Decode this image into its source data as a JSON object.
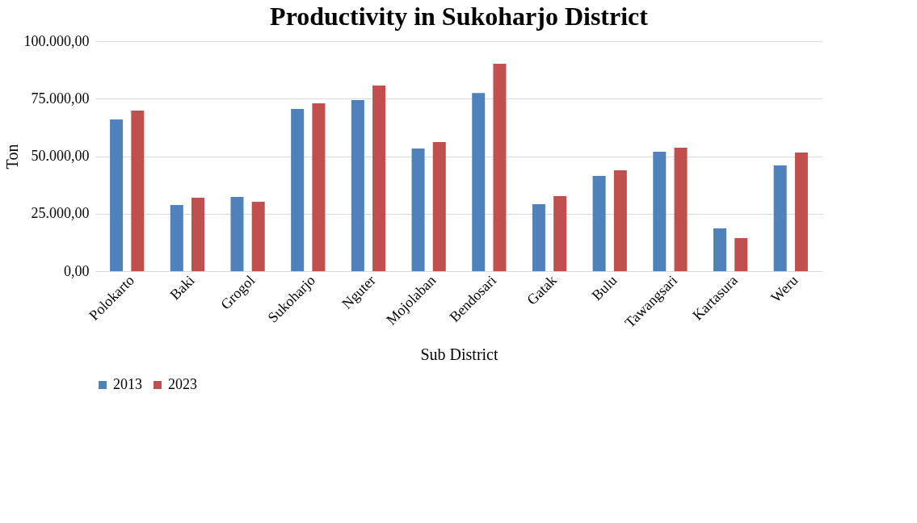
{
  "chart_data": {
    "type": "bar",
    "title": "Productivity in Sukoharjo District",
    "xlabel": "Sub District",
    "ylabel": "Ton",
    "categories": [
      "Polokarto",
      "Baki",
      "Grogol",
      "Sukoharjo",
      "Nguter",
      "Mojolaban",
      "Bendosari",
      "Gatak",
      "Bulu",
      "Tawangsari",
      "Kartasura",
      "Weru"
    ],
    "series": [
      {
        "name": "2013",
        "color": "#4f81bd",
        "values": [
          66000,
          28800,
          32300,
          70500,
          74400,
          53300,
          77500,
          29100,
          41400,
          51900,
          18600,
          46000
        ]
      },
      {
        "name": "2023",
        "color": "#c0504d",
        "values": [
          69800,
          31900,
          30200,
          73000,
          80700,
          56100,
          90200,
          32600,
          43900,
          53700,
          14400,
          51600
        ]
      }
    ],
    "ylim": [
      0,
      100000
    ],
    "yticks": [
      {
        "value": 0,
        "label": "0,00"
      },
      {
        "value": 25000,
        "label": "25.000,00"
      },
      {
        "value": 50000,
        "label": "50.000,00"
      },
      {
        "value": 75000,
        "label": "75.000,00"
      },
      {
        "value": 100000,
        "label": "100.000,00"
      }
    ],
    "grid": "y",
    "legend": "bottom"
  }
}
